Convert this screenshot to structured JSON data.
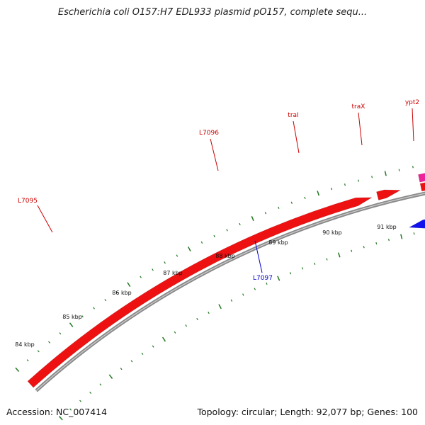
{
  "header": {
    "title": "Escherichia coli O157:H7 EDL933 plasmid pO157, complete sequ..."
  },
  "footer": {
    "accession": "Accession: NC_007414",
    "summary": "Topology: circular; Length: 92,077 bp; Genes: 100"
  },
  "map": {
    "colors": {
      "backbone": "#8a8a8a",
      "forward_gene": "#ee1111",
      "reverse_gene": "#1111ee",
      "special_gene": "#ee2299",
      "other_gene": "#bbbbbb",
      "tick": "#227722",
      "forward_label": "#cc0000",
      "reverse_label": "#0000cc"
    },
    "ruler_labels": [
      "84 kbp",
      "85 kbp",
      "86 kbp",
      "87 kbp",
      "88 kbp",
      "89 kbp",
      "90 kbp",
      "91 kbp"
    ],
    "gene_labels": [
      {
        "text": "L7095",
        "strand": "forward"
      },
      {
        "text": "L7096",
        "strand": "forward"
      },
      {
        "text": "traI",
        "strand": "forward"
      },
      {
        "text": "traX",
        "strand": "forward"
      },
      {
        "text": "ypt2",
        "strand": "forward"
      },
      {
        "text": "L7097",
        "strand": "reverse"
      }
    ]
  }
}
